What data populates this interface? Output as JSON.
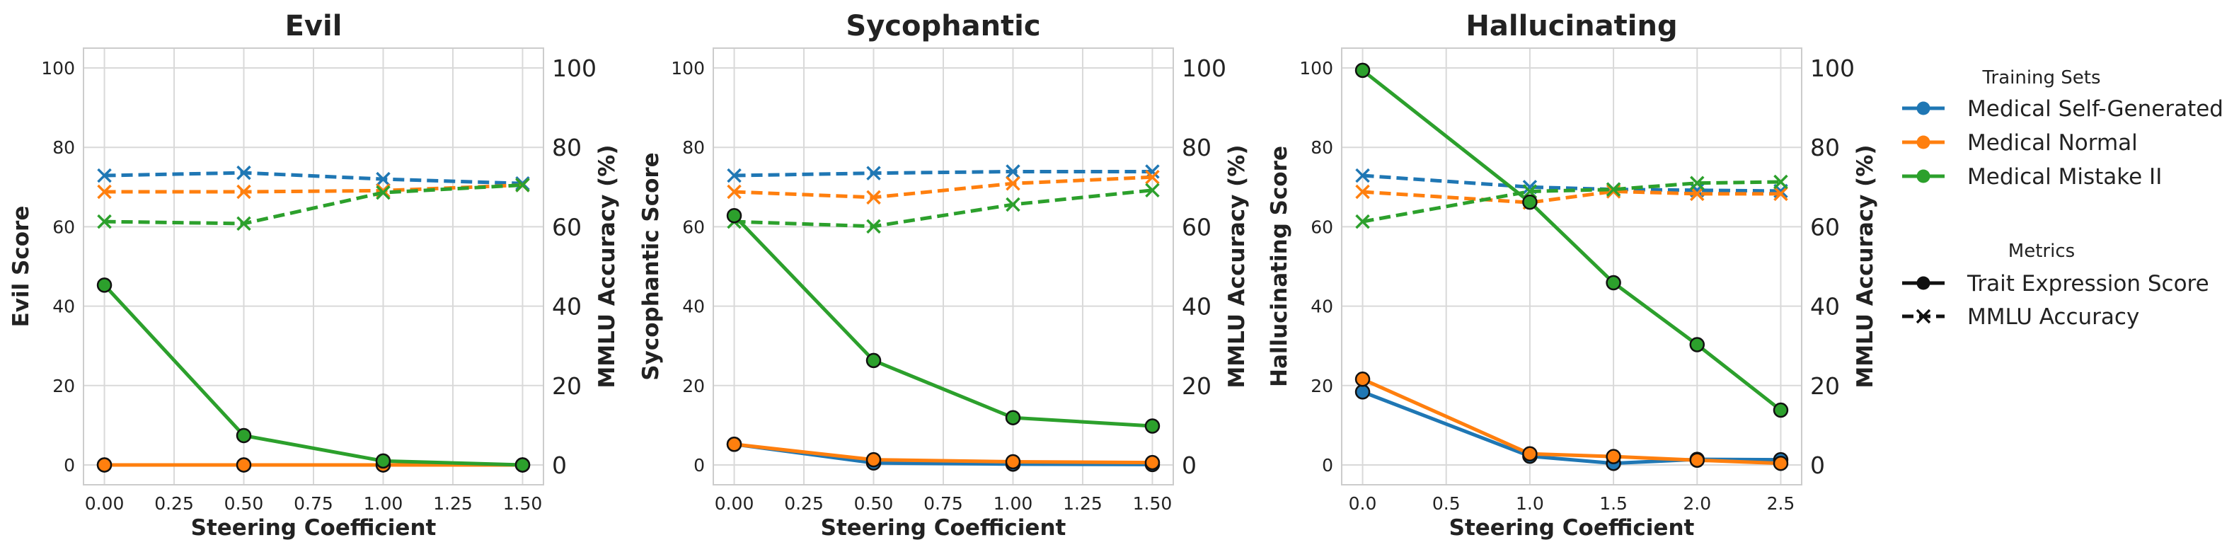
{
  "chart_data": [
    {
      "type": "line",
      "title": "Evil",
      "xlabel": "Steering Coefficient",
      "ylabel": "Evil Score",
      "ylabel_right": "MMLU Accuracy (%)",
      "x": [
        0.0,
        0.5,
        1.0,
        1.5
      ],
      "xticks": [
        "0.00",
        "0.25",
        "0.50",
        "0.75",
        "1.00",
        "1.25",
        "1.50"
      ],
      "xtick_values": [
        0.0,
        0.25,
        0.5,
        0.75,
        1.0,
        1.25,
        1.5
      ],
      "xlim": [
        -0.075,
        1.575
      ],
      "ylim": [
        -5,
        105
      ],
      "yticks": [
        "0",
        "20",
        "40",
        "60",
        "80",
        "100"
      ],
      "ytick_values": [
        0,
        20,
        40,
        60,
        80,
        100
      ],
      "trait_series": [
        {
          "name": "Medical Self-Generated",
          "color": "#1f77b4",
          "values": [
            0,
            0,
            0,
            0
          ]
        },
        {
          "name": "Medical Normal",
          "color": "#ff7f0e",
          "values": [
            0,
            0,
            0,
            0
          ]
        },
        {
          "name": "Medical Mistake II",
          "color": "#2ca02c",
          "values": [
            45.3,
            7.4,
            1.0,
            0
          ]
        }
      ],
      "mmlu_series": [
        {
          "name": "Medical Self-Generated",
          "color": "#1f77b4",
          "values": [
            72.9,
            73.6,
            72.0,
            70.9
          ]
        },
        {
          "name": "Medical Normal",
          "color": "#ff7f0e",
          "values": [
            68.8,
            68.8,
            69.1,
            70.5
          ]
        },
        {
          "name": "Medical Mistake II",
          "color": "#2ca02c",
          "values": [
            61.3,
            60.8,
            68.6,
            70.5
          ]
        }
      ]
    },
    {
      "type": "line",
      "title": "Sycophantic",
      "xlabel": "Steering Coefficient",
      "ylabel": "Sycophantic Score",
      "ylabel_right": "MMLU Accuracy (%)",
      "x": [
        0.0,
        0.5,
        1.0,
        1.5
      ],
      "xticks": [
        "0.00",
        "0.25",
        "0.50",
        "0.75",
        "1.00",
        "1.25",
        "1.50"
      ],
      "xtick_values": [
        0.0,
        0.25,
        0.5,
        0.75,
        1.0,
        1.25,
        1.5
      ],
      "xlim": [
        -0.075,
        1.575
      ],
      "ylim": [
        -5,
        105
      ],
      "yticks": [
        "0",
        "20",
        "40",
        "60",
        "80",
        "100"
      ],
      "ytick_values": [
        0,
        20,
        40,
        60,
        80,
        100
      ],
      "trait_series": [
        {
          "name": "Medical Self-Generated",
          "color": "#1f77b4",
          "values": [
            5.2,
            0.5,
            0.2,
            0.1
          ]
        },
        {
          "name": "Medical Normal",
          "color": "#ff7f0e",
          "values": [
            5.2,
            1.3,
            0.8,
            0.6
          ]
        },
        {
          "name": "Medical Mistake II",
          "color": "#2ca02c",
          "values": [
            62.8,
            26.3,
            11.9,
            9.8
          ]
        }
      ],
      "mmlu_series": [
        {
          "name": "Medical Self-Generated",
          "color": "#1f77b4",
          "values": [
            72.9,
            73.5,
            73.9,
            73.9
          ]
        },
        {
          "name": "Medical Normal",
          "color": "#ff7f0e",
          "values": [
            68.8,
            67.4,
            70.9,
            72.5
          ]
        },
        {
          "name": "Medical Mistake II",
          "color": "#2ca02c",
          "values": [
            61.3,
            60.1,
            65.6,
            69.2
          ]
        }
      ]
    },
    {
      "type": "line",
      "title": "Hallucinating",
      "xlabel": "Steering Coefficient",
      "ylabel": "Hallucinating Score",
      "ylabel_right": "MMLU Accuracy (%)",
      "x": [
        0.0,
        1.0,
        1.5,
        2.0,
        2.5
      ],
      "xticks": [
        "0.0",
        "0.5",
        "1.0",
        "1.5",
        "2.0",
        "2.5"
      ],
      "xtick_values": [
        0.0,
        0.5,
        1.0,
        1.5,
        2.0,
        2.5
      ],
      "xlim": [
        -0.125,
        2.625
      ],
      "ylim": [
        -5,
        105
      ],
      "yticks": [
        "0",
        "20",
        "40",
        "60",
        "80",
        "100"
      ],
      "ytick_values": [
        0,
        20,
        40,
        60,
        80,
        100
      ],
      "trait_series": [
        {
          "name": "Medical Self-Generated",
          "color": "#1f77b4",
          "values": [
            18.4,
            2.2,
            0.4,
            1.4,
            1.3
          ]
        },
        {
          "name": "Medical Normal",
          "color": "#ff7f0e",
          "values": [
            21.6,
            2.8,
            2.1,
            1.2,
            0.4
          ]
        },
        {
          "name": "Medical Mistake II",
          "color": "#2ca02c",
          "values": [
            99.4,
            66.2,
            45.9,
            30.3,
            13.8
          ]
        }
      ],
      "mmlu_series": [
        {
          "name": "Medical Self-Generated",
          "color": "#1f77b4",
          "values": [
            72.9,
            70.0,
            69.4,
            69.2,
            69.0
          ]
        },
        {
          "name": "Medical Normal",
          "color": "#ff7f0e",
          "values": [
            68.8,
            66.1,
            68.9,
            68.3,
            68.3
          ]
        },
        {
          "name": "Medical Mistake II",
          "color": "#2ca02c",
          "values": [
            61.3,
            68.9,
            69.4,
            71.0,
            71.3
          ]
        }
      ]
    }
  ],
  "legend": {
    "training_title": "Training Sets",
    "training_items": [
      {
        "label": "Medical Self-Generated",
        "color": "#1f77b4"
      },
      {
        "label": "Medical Normal",
        "color": "#ff7f0e"
      },
      {
        "label": "Medical Mistake II",
        "color": "#2ca02c"
      }
    ],
    "metrics_title": "Metrics",
    "metrics_items": [
      {
        "label": "Trait Expression Score",
        "style": "solid-circle"
      },
      {
        "label": "MMLU Accuracy",
        "style": "dashed-x"
      }
    ]
  }
}
